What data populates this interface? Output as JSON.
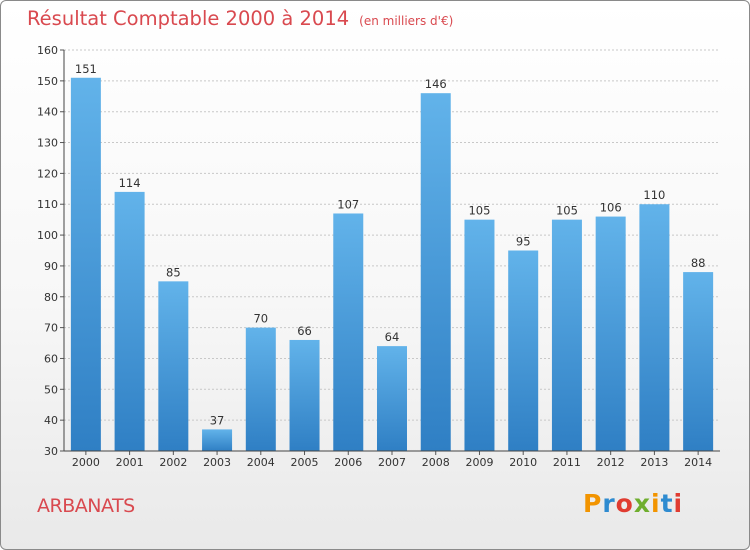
{
  "title": "Résultat Comptable 2000 à 2014",
  "unit_note": "(en milliers d'€)",
  "commune": "ARBANATS",
  "logo": {
    "text": "Proxiti",
    "letters": [
      "P",
      "r",
      "o",
      "x",
      "i",
      "t",
      "i"
    ],
    "colors": [
      "#f29400",
      "#2e8bd0",
      "#e03c31",
      "#6fae2e",
      "#f29400",
      "#2e8bd0",
      "#e03c31"
    ]
  },
  "colors": {
    "bar_top": "#62b3ea",
    "bar_bottom": "#2f7fc4",
    "title": "#d9494f"
  },
  "chart_data": {
    "type": "bar",
    "title": "Résultat Comptable 2000 à 2014",
    "ylabel": "(en milliers d'€)",
    "xlabel": "",
    "categories": [
      "2000",
      "2001",
      "2002",
      "2003",
      "2004",
      "2005",
      "2006",
      "2007",
      "2008",
      "2009",
      "2010",
      "2011",
      "2012",
      "2013",
      "2014"
    ],
    "values": [
      151,
      114,
      85,
      37,
      70,
      66,
      107,
      64,
      146,
      105,
      95,
      105,
      106,
      110,
      88
    ],
    "ylim": [
      30,
      160
    ],
    "yticks": [
      30,
      40,
      50,
      60,
      70,
      80,
      90,
      100,
      110,
      120,
      130,
      140,
      150,
      160
    ],
    "grid": true
  }
}
